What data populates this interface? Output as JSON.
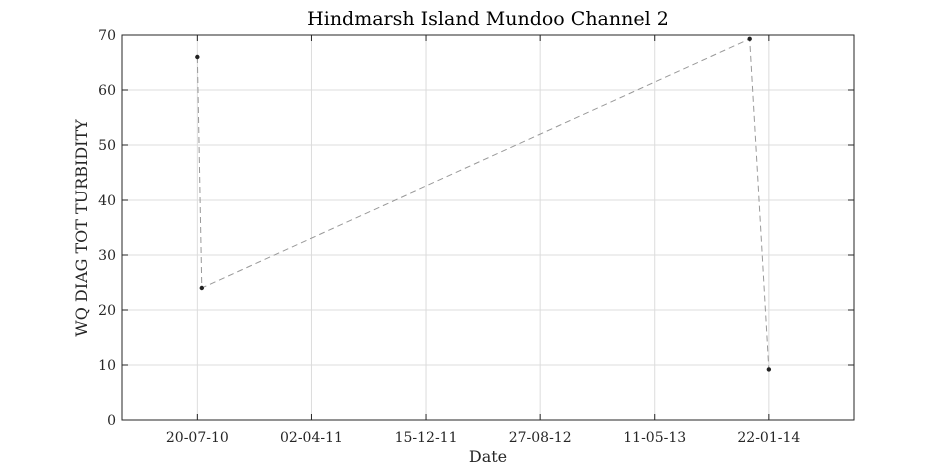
{
  "chart_data": {
    "type": "line",
    "title": "Hindmarsh Island Mundoo Channel 2",
    "xlabel": "Date",
    "ylabel": "WQ DIAG TOT TURBIDITY",
    "x_type": "date",
    "xlim": [
      "2010-02-01",
      "2014-08-01"
    ],
    "ylim": [
      0,
      70
    ],
    "x_ticks": [
      {
        "date": "2010-07-20",
        "label": "20-07-10"
      },
      {
        "date": "2011-04-02",
        "label": "02-04-11"
      },
      {
        "date": "2011-12-15",
        "label": "15-12-11"
      },
      {
        "date": "2012-08-27",
        "label": "27-08-12"
      },
      {
        "date": "2013-05-11",
        "label": "11-05-13"
      },
      {
        "date": "2014-01-22",
        "label": "22-01-14"
      }
    ],
    "y_ticks": [
      0,
      10,
      20,
      30,
      40,
      50,
      60,
      70
    ],
    "grid": true,
    "series": [
      {
        "points": [
          {
            "x": "2010-07-20",
            "y": 66
          },
          {
            "x": "2010-07-30",
            "y": 24
          },
          {
            "x": "2013-12-10",
            "y": 69.3
          },
          {
            "x": "2014-01-22",
            "y": 9.2
          }
        ],
        "line_color": "#999999",
        "line_style": "dashed",
        "marker_color": "#222222"
      }
    ]
  }
}
